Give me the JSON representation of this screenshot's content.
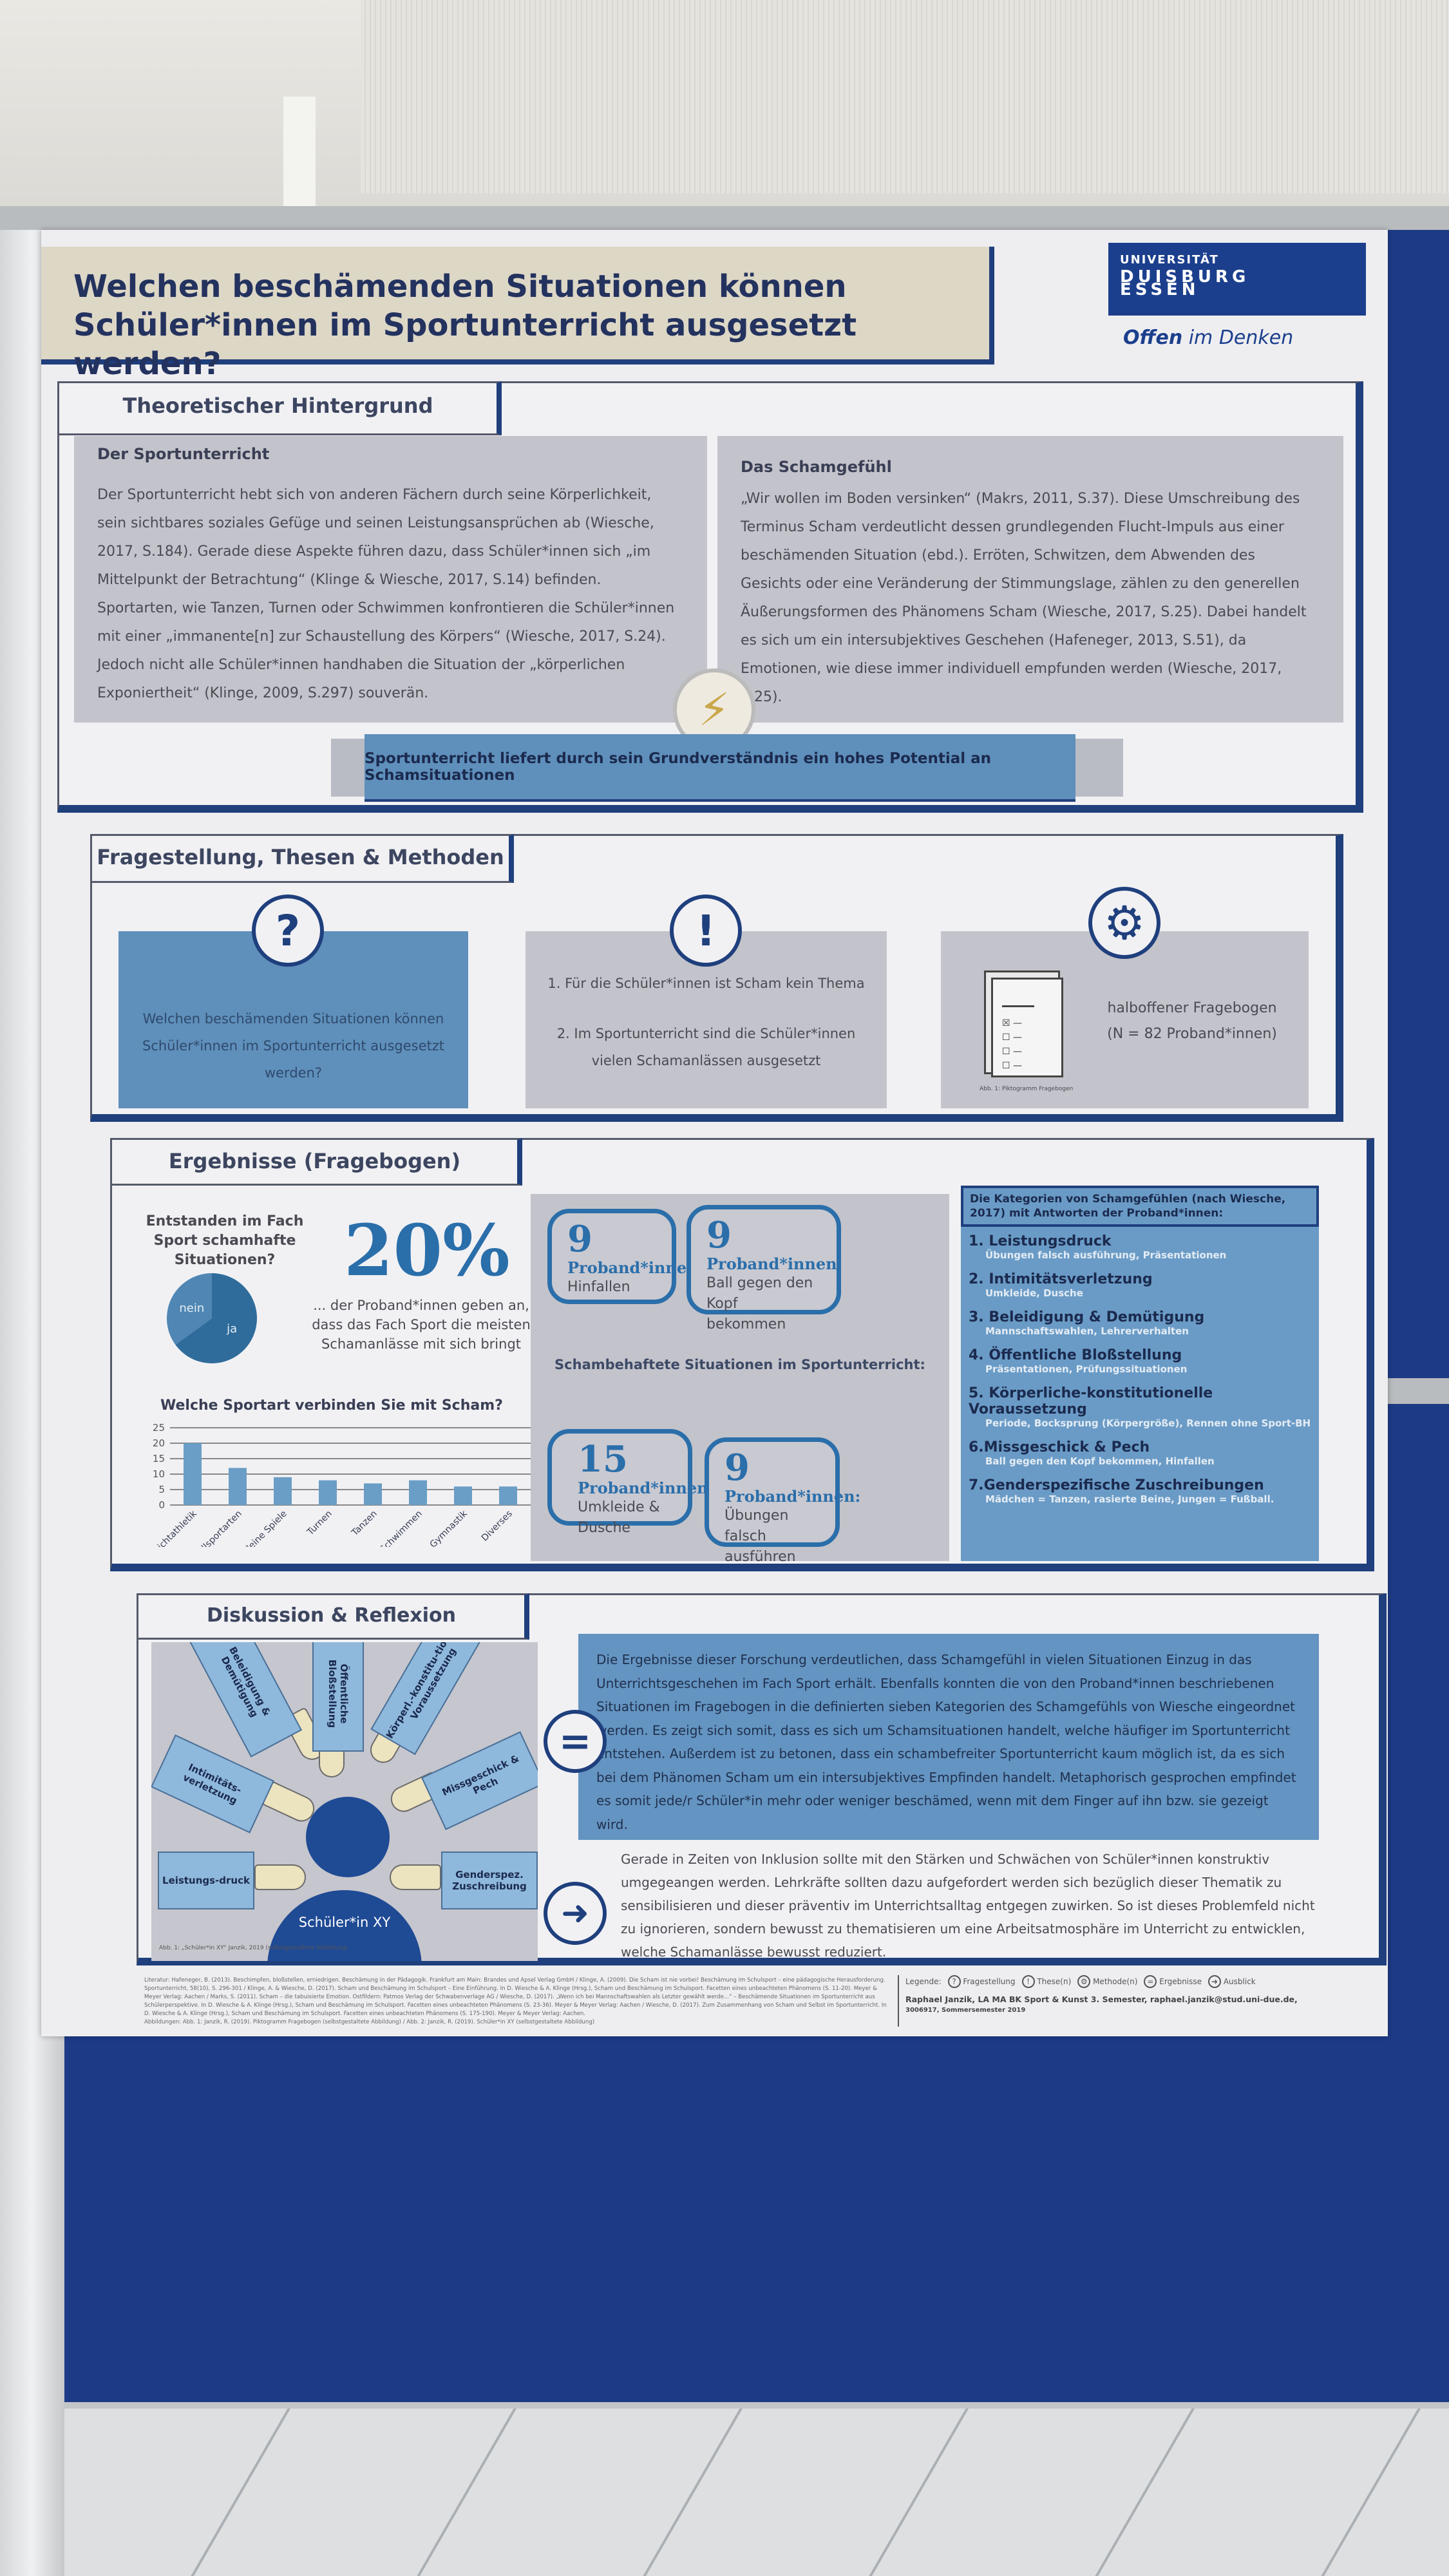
{
  "poster": {
    "title": "Welchen beschämenden Situationen können Schüler*innen im Sportunterricht ausgesetzt werden?",
    "logo": {
      "line1": "UNIVERSITÄT",
      "line2": "DUISBURG",
      "line3": "ESSEN",
      "slogan_bold": "Offen",
      "slogan_rest": " im Denken"
    },
    "theory": {
      "tab": "Theoretischer Hintergrund",
      "left_heading": "Der Sportunterricht",
      "left_text": "Der Sportunterricht hebt sich von anderen Fächern durch seine Körperlichkeit, sein sichtbares soziales Gefüge und seinen Leistungsansprüchen ab (Wiesche, 2017, S.184). Gerade diese Aspekte führen dazu, dass Schüler*innen sich „im Mittelpunkt der Betrachtung“ (Klinge & Wiesche, 2017, S.14) befinden. Sportarten, wie Tanzen, Turnen oder Schwimmen konfrontieren die Schüler*innen mit einer „immanente[n] zur Schaustellung des Körpers“ (Wiesche, 2017, S.24). Jedoch nicht alle Schüler*innen handhaben die Situation der „körperlichen Exponiertheit“ (Klinge, 2009, S.297) souverän.",
      "right_heading": "Das Schamgefühl",
      "right_text": "„Wir wollen im Boden versinken“ (Makrs, 2011, S.37). Diese Umschreibung des Terminus Scham verdeutlicht dessen grundlegenden Flucht-Impuls aus einer beschämenden Situation (ebd.). Erröten, Schwitzen, dem Abwenden des Gesichts oder eine Veränderung der Stimmungslage, zählen zu den generellen Äußerungsformen des Phänomens Scham (Wiesche, 2017, S.25). Dabei handelt es sich um ein intersubjektives Geschehen (Hafeneger, 2013, S.51), da Emotionen, wie diese immer individuell empfunden werden (Wiesche, 2017, S.25).",
      "banner": "Sportunterricht liefert durch sein Grundverständnis ein hohes Potential an Schamsituationen"
    },
    "methods": {
      "tab": "Fragestellung, Thesen & Methoden",
      "question": "Welchen beschämenden Situationen können Schüler*innen im Sportunterricht ausgesetzt werden?",
      "thesis1": "1. Für die Schüler*innen ist Scham kein Thema",
      "thesis2": "2. Im Sportunterricht sind die Schüler*innen vielen Schamanlässen ausgesetzt",
      "method": "halboffener Fragebogen",
      "method_n": "(N = 82 Proband*innen)",
      "figure_caption": "Abb. 1: Piktogramm Fragebogen"
    },
    "results": {
      "tab": "Ergebnisse (Fragebogen)",
      "pie_question": "Entstanden im Fach Sport schamhafte Situationen?",
      "big_percent": "20%",
      "percent_text": "... der Proband*innen geben an, dass das Fach Sport die meisten Schamanlässe mit sich bringt",
      "center_title": "Schambehaftete Situationen im Sportunterricht:",
      "bubbles": [
        {
          "count": "9",
          "label": "Proband*innen:",
          "text": "Hinfallen"
        },
        {
          "count": "9",
          "label": "Proband*innen:",
          "text": "Ball gegen den Kopf bekommen"
        },
        {
          "count": "15",
          "label": "Proband*innen:",
          "text": "Umkleide & Dusche"
        },
        {
          "count": "9",
          "label": "Proband*innen:",
          "text": "Übungen falsch ausführen"
        }
      ],
      "categories_title": "Die Kategorien von Schamgefühlen (nach Wiesche, 2017) mit Antworten der Proband*innen:",
      "categories": [
        {
          "title": "1. Leistungsdruck",
          "examples": "Übungen falsch ausführung, Präsentationen"
        },
        {
          "title": "2. Intimitätsverletzung",
          "examples": "Umkleide, Dusche"
        },
        {
          "title": "3. Beleidigung & Demütigung",
          "examples": "Mannschaftswahlen, Lehrerverhalten"
        },
        {
          "title": "4. Öffentliche Bloßstellung",
          "examples": "Präsentationen, Prüfungssituationen"
        },
        {
          "title": "5. Körperliche-konstitutionelle Voraussetzung",
          "examples": "Periode, Bocksprung (Körpergröße), Rennen ohne Sport-BH"
        },
        {
          "title": "6.Missgeschick & Pech",
          "examples": "Ball gegen den Kopf bekommen, Hinfallen"
        },
        {
          "title": "7.Genderspezifische Zuschreibungen",
          "examples": "Mädchen = Tanzen, rasierte Beine, Jungen = Fußball."
        }
      ]
    },
    "discussion": {
      "tab": "Diskussion & Reflexion",
      "hands": [
        "Leistungs-druck",
        "Intimitäts-verletzung",
        "Beleidigung & Demütigung",
        "Öffentliche Bloßstellung",
        "Körperl.-konstitu-tionelle Voraussetzung",
        "Missgeschick & Pech",
        "Genderspez. Zuschreibung"
      ],
      "person": "Schüler*in XY",
      "figure_caption": "Abb. 1: „Schüler*in XY“ Janzik, 2019 (selbstgestaltete Abbildung)",
      "result_text": "Die Ergebnisse dieser Forschung verdeutlichen, dass Schamgefühl in vielen Situationen Einzug in das Unterrichtsgeschehen im Fach Sport erhält. Ebenfalls konnten die von den Proband*innen beschriebenen Situationen im Fragebogen in die definierten sieben Kategorien des Schamgefühls von Wiesche eingeordnet werden. Es zeigt sich somit, dass es sich um Schamsituationen handelt, welche häufiger im Sportunterricht entstehen. Außerdem ist zu betonen, dass ein schambefreiter Sportunterricht kaum möglich ist, da es sich bei dem Phänomen Scham um ein intersubjektives Empfinden handelt. Metaphorisch gesprochen empfindet es somit jede/r Schüler*in mehr oder weniger beschämed, wenn mit dem Finger auf ihn bzw. sie gezeigt wird.",
      "outlook_text": "Gerade in Zeiten von Inklusion sollte mit den Stärken und Schwächen von Schüler*innen konstruktiv umgegeangen werden. Lehrkräfte sollten dazu aufgefordert werden sich bezüglich dieser Thematik zu sensibilisieren und dieser präventiv im Unterrichtsalltag entgegen zuwirken. So ist dieses Problemfeld nicht zu ignorieren, sondern bewusst zu thematisieren um eine Arbeitsatmosphäre im Unterricht zu entwicklen, welche Schamanlässe bewusst reduziert."
    },
    "footer": {
      "references": "Literatur: Hafeneger, B. (2013). Beschimpfen, bloßstellen, erniedrigen. Beschämung in der Pädagogik. Frankfurt am Main: Brandes und Apsel Verlag GmbH / Klinge, A. (2009). Die Scham ist nie vorbei! Beschämung im Schulsport – eine pädagogische Herausforderung. Sportunterricht, 58(10), S. 296-301 / Klinge, A. & Wiesche, D. (2017). Scham und Beschämung im Schulsport – Eine Einführung. In D. Wiesche & A. Klinge (Hrsg.), Scham und Beschämung im Schulsport. Facetten eines unbeachteten Phänomens (S. 11-20). Meyer & Meyer Verlag: Aachen / Marks, S. (2011). Scham – die tabuisierte Emotion. Ostfildern: Patmos Verlag der Schwabenverlage AG / Wiesche, D. (2017). „Wenn ich bei Mannschaftswahlen als Letzter gewählt werde...“ – Beschämende Situationen im Sportunterricht aus Schülerperspektive. In D. Wiesche & A. Klinge (Hrsg.), Scham und Beschämung im Schulsport. Facetten eines unbeachteten Phänomens (S. 23-36). Meyer & Meyer Verlag: Aachen / Wiesche, D. (2017). Zum Zusammenhang von Scham und Selbst im Sportunterricht. In D. Wiesche & A. Klinge (Hrsg.), Scham und Beschämung im Schulsport. Facetten eines unbeachteten Phänomens (S. 175-190). Meyer & Meyer Verlag: Aachen.",
      "figures": "Abbildungen: Abb. 1: Janzik, R. (2019). Piktogramm Fragebogen (selbstgestaltete Abbildung) / Abb. 2: Janzik, R. (2019). Schüler*in XY (selbstgestaltete Abbildung)",
      "legend_label": "Legende:",
      "legend": [
        "Fragestellung",
        "These(n)",
        "Methode(n)",
        "Ergebnisse",
        "Ausblick"
      ],
      "author": "Raphael Janzik, LA MA BK Sport & Kunst 3. Semester, raphael.janzik@stud.uni-due.de,",
      "author2": "3006917, Sommersemester 2019"
    }
  },
  "chart_data": [
    {
      "type": "pie",
      "title": "Entstanden im Fach Sport schamhafte Situationen?",
      "categories": [
        "nein",
        "ja"
      ],
      "values": [
        35,
        65
      ],
      "colors": [
        "#4f86b3",
        "#2f6c9b"
      ]
    },
    {
      "type": "bar",
      "title": "Welche Sportart verbinden Sie mit Scham?",
      "categories": [
        "Leichtathletik",
        "Ballsportarten",
        "Kleine Spiele",
        "Turnen",
        "Tanzen",
        "Schwimmen",
        "Gymnastik",
        "Diverses"
      ],
      "values": [
        20,
        12,
        9,
        8,
        7,
        8,
        6,
        6
      ],
      "yticks": [
        "0",
        "5",
        "10",
        "15",
        "20",
        "25"
      ],
      "ylim": [
        0,
        25
      ],
      "grid": true,
      "color": "#6b9ec6"
    }
  ],
  "colors": {
    "brand": "#1c3f8d",
    "accent": "#5f8fbb",
    "board": "#1d3a86"
  }
}
